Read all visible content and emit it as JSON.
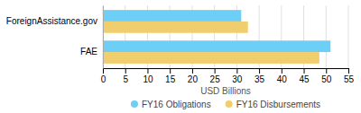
{
  "chart_data": {
    "type": "bar",
    "orientation": "horizontal",
    "categories": [
      "FAE",
      "ForeignAssistance.gov"
    ],
    "series": [
      {
        "name": "FY16 Obligations",
        "color": "#6dcff6",
        "values": [
          51.0,
          31.0
        ]
      },
      {
        "name": "FY16 Disbursements",
        "color": "#f0ce6e",
        "values": [
          48.5,
          32.5
        ]
      }
    ],
    "xlabel": "USD Billions",
    "xlim": [
      0,
      55
    ],
    "xticks": [
      0,
      5,
      10,
      15,
      20,
      25,
      30,
      35,
      40,
      45,
      50,
      55
    ],
    "grid": true,
    "legend": "bottom"
  }
}
